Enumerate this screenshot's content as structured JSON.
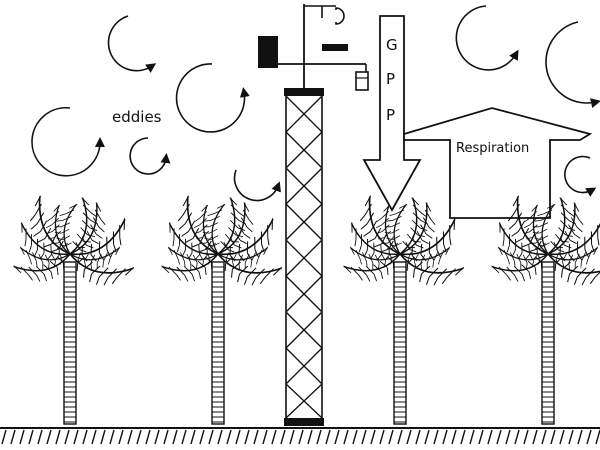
{
  "labels": {
    "eddies": "eddies",
    "gpp": [
      "G",
      "P",
      "P"
    ],
    "respiration": "Respiration"
  },
  "colors": {
    "ink": "#111111",
    "background": "#ffffff"
  },
  "icons": {
    "eddy": "circular-arrow-icon",
    "tree": "palm-tree",
    "tower": "flux-tower"
  }
}
